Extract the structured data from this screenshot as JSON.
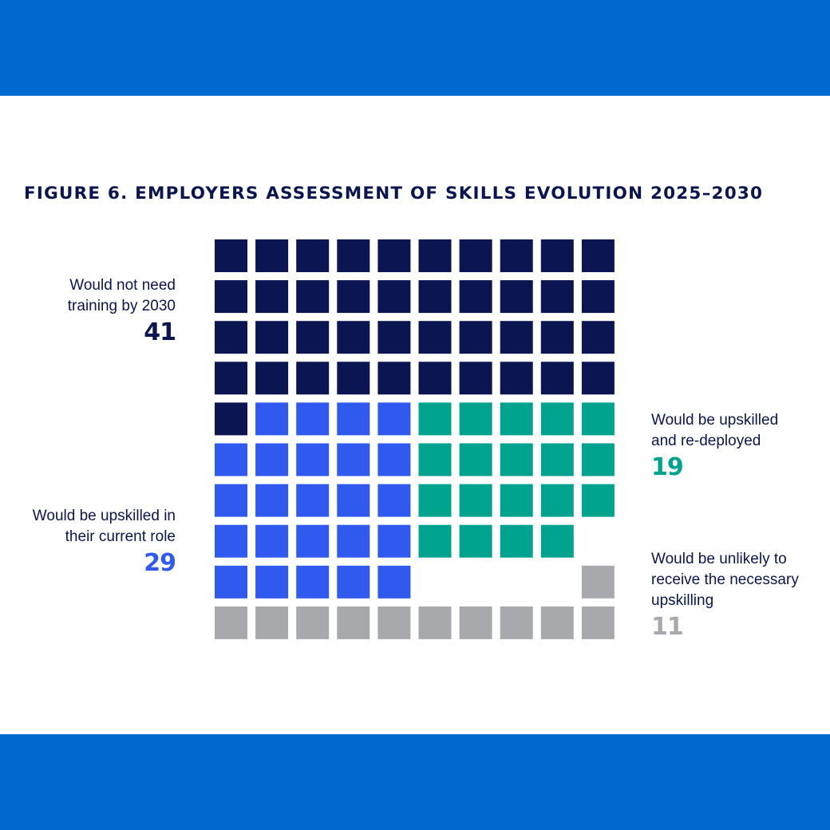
{
  "colors": {
    "band": "#0069cf",
    "title": "#0a1551",
    "label_text": "#0a1551"
  },
  "title": "FIGURE 6. EMPLOYERS ASSESSMENT OF SKILLS EVOLUTION 2025–2030",
  "chart_data": {
    "type": "waffle",
    "grid": {
      "rows": 10,
      "columns": 10,
      "unit_value": 1
    },
    "fill_order": "row-major from top-left; grey cells fill from bottom-right",
    "categories": [
      {
        "label_lines": [
          "Would not need",
          "training by 2030"
        ],
        "value": 41,
        "value_text": "41",
        "color": "#0a1551",
        "label_side": "left"
      },
      {
        "label_lines": [
          "Would be upskilled in",
          "their current role"
        ],
        "value": 29,
        "value_text": "29",
        "color": "#3059f0",
        "label_side": "left"
      },
      {
        "label_lines": [
          "Would be upskilled",
          "and re-deployed"
        ],
        "value": 19,
        "value_text": "19",
        "color": "#00a38d",
        "label_side": "right"
      },
      {
        "label_lines": [
          "Would be unlikely to",
          "receive the necessary",
          "upskilling"
        ],
        "value": 11,
        "value_text": "11",
        "color": "#a7a9ac",
        "label_side": "right"
      }
    ]
  }
}
